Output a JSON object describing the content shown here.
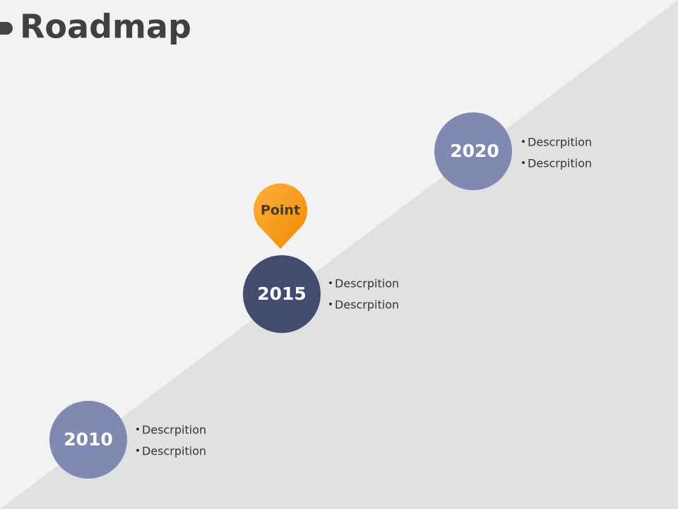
{
  "title": "Roadmap",
  "pin": {
    "label": "Point"
  },
  "milestones": [
    {
      "year": "2010",
      "items": [
        "Descrpition",
        "Descrpition"
      ]
    },
    {
      "year": "2015",
      "items": [
        "Descrpition",
        "Descrpition"
      ]
    },
    {
      "year": "2020",
      "items": [
        "Descrpition",
        "Descrpition"
      ]
    }
  ]
}
